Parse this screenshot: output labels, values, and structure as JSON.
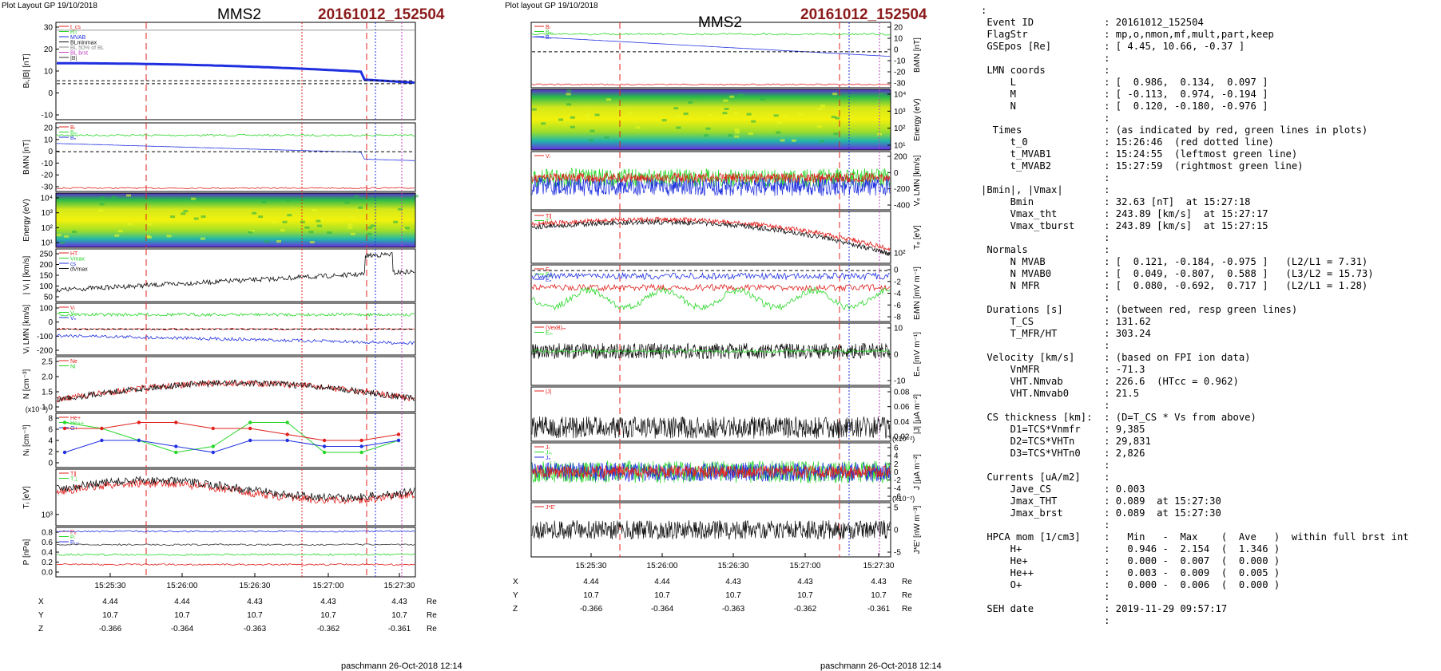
{
  "left": {
    "layout_label": "Plot Layout GP 19/10/2018",
    "spacecraft": "MMS2",
    "event": "20161012_152504",
    "panels": [
      {
        "ylabel": "Bₗ,|B| [nT]",
        "yticks": [
          "30",
          "20",
          "10",
          "0",
          "-10"
        ],
        "legend": [
          "t_cs",
          "HT",
          "MVAB",
          "BLminmax",
          "BL 50% of BL",
          "BL brst",
          "|B|"
        ]
      },
      {
        "ylabel": "BₗMN [nT]",
        "yticks": [
          "20",
          "10",
          "0",
          "-10",
          "-20",
          "-30"
        ],
        "legend": [
          "Bₗ",
          "Bₘ",
          "Bₙ"
        ]
      },
      {
        "ylabel": "Energy (eV)",
        "yticks": [
          "10⁴",
          "10³",
          "10²",
          "10¹"
        ],
        "legend": []
      },
      {
        "ylabel": "| Vᵢ | [km/s]",
        "yticks": [
          "250",
          "200",
          "150",
          "100",
          "50"
        ],
        "legend": [
          "HT",
          "Vmax",
          "cs",
          "dVmax"
        ]
      },
      {
        "ylabel": "Vᵢ LMN [km/s]",
        "yticks": [
          "100",
          "0",
          "-100",
          "-200"
        ],
        "legend": [
          "Vₗ",
          "Vₘ",
          "Vₙ"
        ]
      },
      {
        "ylabel": "N [cm⁻³]",
        "yticks": [
          "2.5",
          "2.0",
          "1.5",
          "1.0"
        ],
        "legend": [
          "Ne",
          "Ni"
        ]
      },
      {
        "ylabel": "Nᵢ [cm⁻³]",
        "yticks": [
          "8",
          "6",
          "4",
          "2",
          "0"
        ],
        "legend": [
          "He+",
          "He++",
          "O+"
        ],
        "exp": "(x10⁻³)"
      },
      {
        "ylabel": "Tᵢ [eV]",
        "yticks": [
          "10³"
        ],
        "legend": [
          "T∥",
          "T⊥"
        ]
      },
      {
        "ylabel": "P [nPa]",
        "yticks": [
          "0.8",
          "0.6",
          "0.4",
          "0.2",
          "0.0"
        ],
        "legend": [
          "Pₑ",
          "Pᵢ",
          "Pₜₒₜ"
        ]
      }
    ],
    "xticks": [
      "15:25:30",
      "15:26:00",
      "15:26:30",
      "15:27:00",
      "15:27:30"
    ],
    "X": [
      "4.44",
      "4.44",
      "4.43",
      "4.43",
      "4.43"
    ],
    "Y": [
      "10.7",
      "10.7",
      "10.7",
      "10.7",
      "10.7"
    ],
    "Z": [
      "-0.366",
      "-0.364",
      "-0.363",
      "-0.362",
      "-0.361"
    ],
    "unit": "Re",
    "footer": "paschmann 26-Oct-2018 12:14"
  },
  "mid": {
    "layout_label": "Plot layout GP 19/10/2018",
    "spacecraft": "MMS2",
    "event": "20161012_152504",
    "panels": [
      {
        "ylabel": "BₗMN [nT]",
        "yticks": [
          "20",
          "10",
          "0",
          "-10",
          "-20",
          "-30"
        ],
        "legend": [
          "Bₗ",
          "Bₘ",
          "Bₙ"
        ]
      },
      {
        "ylabel": "Energy (eV)",
        "yticks": [
          "10⁴",
          "10³",
          "10²",
          "10¹"
        ],
        "legend": []
      },
      {
        "ylabel": "Vₑ LMN [km/s]",
        "yticks": [
          "200",
          "0",
          "-200",
          "-400"
        ],
        "legend": [
          "Vₗ"
        ]
      },
      {
        "ylabel": "Tₑ [eV]",
        "yticks": [
          "10²"
        ],
        "legend": [
          "T∥",
          "T⊥"
        ]
      },
      {
        "ylabel": "EₗMN [mV m⁻¹]",
        "yticks": [
          "0",
          "-2",
          "-4",
          "-6",
          "-8"
        ],
        "legend": [
          "Eₗ",
          "Eₘ",
          "Eₙ"
        ]
      },
      {
        "ylabel": "Eₘ [mV m⁻¹]",
        "yticks": [
          "10",
          "0",
          "-10"
        ],
        "legend": [
          "(VexB)ₘ",
          "Eₘ"
        ]
      },
      {
        "ylabel": "|J| [μA m⁻²]",
        "yticks": [
          "0.08",
          "0.06",
          "0.04",
          "0.02"
        ],
        "legend": [
          "|J|"
        ]
      },
      {
        "ylabel": "J [μA m⁻²]",
        "yticks": [
          "6",
          "4",
          "2",
          "0",
          "-2",
          "-4",
          "-6"
        ],
        "legend": [
          "Jₗ",
          "Jₘ",
          "Jₙ"
        ],
        "exp": "(x10⁻²)"
      },
      {
        "ylabel": "J*E' [nW m⁻³]",
        "yticks": [
          "5",
          "0",
          "-5"
        ],
        "legend": [
          "J*E'"
        ],
        "exp": "(x10⁻²)"
      }
    ],
    "xticks": [
      "15:25:30",
      "15:26:00",
      "15:26:30",
      "15:27:00",
      "15:27:30"
    ],
    "X": [
      "4.44",
      "4.44",
      "4.43",
      "4.43",
      "4.43"
    ],
    "Y": [
      "10.7",
      "10.7",
      "10.7",
      "10.7",
      "10.7"
    ],
    "Z": [
      "-0.366",
      "-0.364",
      "-0.363",
      "-0.362",
      "-0.361"
    ],
    "unit": "Re",
    "footer": "paschmann 26-Oct-2018 12:14"
  },
  "info_lines": [
    ":",
    " Event ID            : 20161012_152504",
    " FlagStr             : mp,o,nmon,mf,mult,part,keep",
    " GSEpos [Re]         : [ 4.45, 10.66, -0.37 ]",
    "                     :",
    " LMN coords          :",
    "     L               : [  0.986,  0.134,  0.097 ]",
    "     M               : [ -0.113,  0.974, -0.194 ]",
    "     N               : [  0.120, -0.180, -0.976 ]",
    "                     :",
    "  Times              : (as indicated by red, green lines in plots)",
    "     t_0             : 15:26:46  (red dotted line)",
    "     t_MVAB1         : 15:24:55  (leftmost green line)",
    "     t_MVAB2         : 15:27:59  (rightmost green line)",
    "                     :",
    "|Bmin|, |Vmax|       :",
    "     Bmin            : 32.63 [nT]  at 15:27:18",
    "     Vmax_tht        : 243.89 [km/s]  at 15:27:17",
    "     Vmax_tburst     : 243.89 [km/s]  at 15:27:15",
    "                     :",
    " Normals             :",
    "     N MVAB          : [  0.121, -0.184, -0.975 ]   (L2/L1 = 7.31)",
    "     N MVAB0         : [  0.049, -0.807,  0.588 ]   (L3/L2 = 15.73)",
    "     N MFR           : [  0.080, -0.692,  0.717 ]   (L2/L1 = 1.28)",
    "                     :",
    " Durations [s]       : (between red, resp green lines)",
    "     T_CS            : 131.62",
    "     T_MFR/HT        : 303.24",
    "                     :",
    " Velocity [km/s]     : (based on FPI ion data)",
    "     VnMFR           : -71.3",
    "     VHT.Nmvab       : 226.6  (HTcc = 0.962)",
    "     VHT.Nmvab0      : 21.5",
    "                     :",
    " CS thickness [km]:  : (D=T_CS * Vs from above)",
    "     D1=TCS*Vnmfr    : 9,385",
    "     D2=TCS*VHTn     : 29,831",
    "     D3=TCS*VHTn0    : 2,826",
    "                     :",
    " Currents [uA/m2]    :",
    "     Jave_CS         : 0.003",
    "     Jmax_THT        : 0.089  at 15:27:30",
    "     Jmax_brst       : 0.089  at 15:27:30",
    "                     :",
    " HPCA mom [1/cm3]    :   Min   -  Max    (  Ave   )  within full brst int",
    "     H+              :   0.946 -  2.154  (  1.346 )",
    "     He+             :   0.000 -  0.007  (  0.000 )",
    "     He++            :   0.003 -  0.009  (  0.005 )",
    "     O+              :   0.000 -  0.006  (  0.000 )",
    "                     :",
    " SEH date            : 2019-11-29 09:57:17",
    "                     :"
  ],
  "chart_data": [
    {
      "type": "line",
      "title": "MMS2",
      "subtitle": "20161012_152504",
      "xlabel": "",
      "xticks": [
        "15:25:30",
        "15:26:00",
        "15:26:30",
        "15:27:00",
        "15:27:30"
      ],
      "series": [
        {
          "name": "He+",
          "values": [
            7,
            6,
            4,
            2,
            3,
            7,
            7,
            2,
            2,
            4
          ]
        },
        {
          "name": "He++",
          "values": [
            6,
            6,
            7,
            7,
            6,
            6,
            5,
            4,
            4,
            5
          ]
        },
        {
          "name": "O+",
          "values": [
            2,
            4,
            4,
            3,
            2,
            4,
            4,
            3,
            3,
            4
          ]
        }
      ],
      "ylim": [
        0,
        8
      ]
    },
    {
      "type": "line",
      "title": "MMS2",
      "subtitle": "20161012_152504",
      "xlabel": "",
      "xticks": [
        "15:25:30",
        "15:26:00",
        "15:26:30",
        "15:27:00",
        "15:27:30"
      ],
      "ylim": [
        -400,
        200
      ]
    }
  ],
  "colors": {
    "red": "#e0201c",
    "green": "#27d627",
    "blue": "#1f2fe0",
    "black": "#111111",
    "event": "#8b1a1a"
  }
}
